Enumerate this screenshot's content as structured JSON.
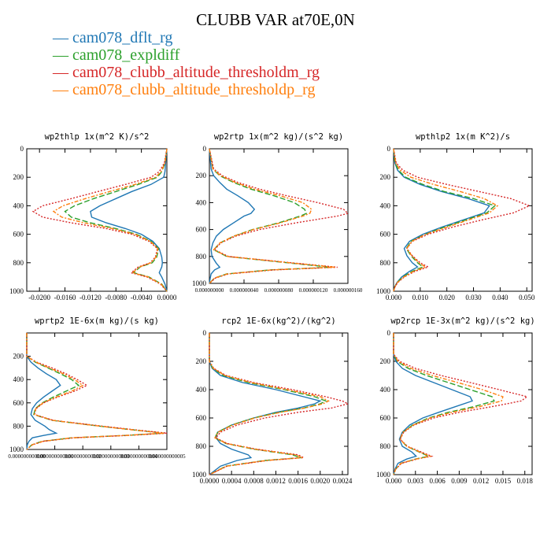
{
  "title": "CLUBB VAR at70E,0N",
  "legend": [
    {
      "name": "cam078_dflt_rg",
      "color": "#1f77b4"
    },
    {
      "name": "cam078_expldiff",
      "color": "#2ca02c"
    },
    {
      "name": "cam078_clubb_altitude_thresholdm_rg",
      "color": "#d62728"
    },
    {
      "name": "cam078_clubb_altitude_thresholdp_rg",
      "color": "#ff7f0e"
    }
  ],
  "chart_data": [
    {
      "type": "line",
      "title": "wp2thlp   1x(m^2 K)/s^2",
      "xlim": [
        -0.022,
        0.0
      ],
      "ylim": [
        1000,
        0
      ],
      "xticks": [
        -0.02,
        -0.016,
        -0.012,
        -0.008,
        -0.004,
        0.0
      ],
      "xtick_labels": [
        "-0.0200",
        "-0.0160",
        "-0.0120",
        "-0.0080",
        "-0.0040",
        "0.0000"
      ],
      "yticks": [
        0,
        200,
        400,
        600,
        800,
        1000
      ],
      "ytick_labels": [
        "0",
        "200",
        "400",
        "600",
        "800",
        "1000"
      ],
      "y": [
        0,
        100,
        160,
        200,
        250,
        300,
        350,
        400,
        440,
        480,
        520,
        560,
        600,
        650,
        700,
        760,
        800,
        830,
        870,
        900,
        950,
        1000
      ],
      "series": [
        {
          "name": "cam078_dflt_rg",
          "values": [
            0,
            -0.0002,
            -0.0003,
            -0.0005,
            -0.0025,
            -0.0055,
            -0.008,
            -0.0105,
            -0.012,
            -0.0118,
            -0.0095,
            -0.0065,
            -0.004,
            -0.0022,
            -0.0012,
            -0.0008,
            -0.0007,
            -0.0008,
            -0.0012,
            -0.0008,
            -0.0003,
            0
          ]
        },
        {
          "name": "cam078_expldiff",
          "values": [
            0,
            -0.0003,
            -0.0008,
            -0.0015,
            -0.0045,
            -0.008,
            -0.0115,
            -0.0145,
            -0.016,
            -0.015,
            -0.012,
            -0.008,
            -0.0048,
            -0.0025,
            -0.0013,
            -0.0016,
            -0.0023,
            -0.0042,
            -0.0052,
            -0.0028,
            -0.0008,
            0
          ]
        },
        {
          "name": "cam078_clubb_altitude_thresholdm_rg",
          "values": [
            0,
            -0.0004,
            -0.0012,
            -0.0025,
            -0.0065,
            -0.0108,
            -0.015,
            -0.0195,
            -0.021,
            -0.0195,
            -0.015,
            -0.0095,
            -0.0055,
            -0.0028,
            -0.0015,
            -0.0018,
            -0.0026,
            -0.0045,
            -0.0056,
            -0.0031,
            -0.001,
            0
          ]
        },
        {
          "name": "cam078_clubb_altitude_thresholdp_rg",
          "values": [
            0,
            -0.0003,
            -0.0009,
            -0.0018,
            -0.005,
            -0.009,
            -0.0128,
            -0.0163,
            -0.0178,
            -0.0165,
            -0.013,
            -0.0085,
            -0.005,
            -0.0026,
            -0.0014,
            -0.0017,
            -0.0025,
            -0.0043,
            -0.0054,
            -0.0029,
            -0.0009,
            0
          ]
        }
      ]
    },
    {
      "type": "line",
      "title": "wp2rtp   1x(m^2 kg)/(s^2 kg)",
      "xlim": [
        0.0,
        1.6e-07
      ],
      "ylim": [
        1000,
        0
      ],
      "xticks": [
        0.0,
        4e-08,
        8e-08,
        1.2e-07,
        1.6e-07
      ],
      "xtick_labels": [
        "0.000000000",
        "0.000000040",
        "0.000000080",
        "0.000000120",
        "0.000000160"
      ],
      "yticks": [
        0,
        200,
        400,
        600,
        800,
        1000
      ],
      "ytick_labels": [
        "0",
        "200",
        "400",
        "600",
        "800",
        "1000"
      ],
      "y": [
        0,
        150,
        200,
        250,
        300,
        350,
        400,
        450,
        480,
        500,
        550,
        600,
        650,
        700,
        750,
        800,
        850,
        880,
        900,
        930,
        960,
        1000
      ],
      "series": [
        {
          "name": "cam078_dflt_rg",
          "values": [
            0,
            2e-09,
            5e-09,
            1.2e-08,
            2e-08,
            3.3e-08,
            4.5e-08,
            5.2e-08,
            4.8e-08,
            4e-08,
            2.8e-08,
            1.6e-08,
            8e-09,
            4e-09,
            2e-09,
            3e-09,
            8e-09,
            1.2e-08,
            6e-09,
            2e-09,
            1e-09,
            0
          ]
        },
        {
          "name": "cam078_expldiff",
          "values": [
            0,
            4e-09,
            1.2e-08,
            2.8e-08,
            4.8e-08,
            7.5e-08,
            9.8e-08,
            1.1e-07,
            1.12e-07,
            1.05e-07,
            8e-08,
            5e-08,
            2.8e-08,
            1.2e-08,
            5e-09,
            2e-08,
            9.5e-08,
            1.4e-07,
            7e-08,
            2e-08,
            6e-09,
            0
          ]
        },
        {
          "name": "cam078_clubb_altitude_thresholdm_rg",
          "values": [
            0,
            5e-09,
            1.5e-08,
            3.3e-08,
            5.8e-08,
            9e-08,
            1.25e-07,
            1.55e-07,
            1.62e-07,
            1.48e-07,
            1e-07,
            5.8e-08,
            3e-08,
            1.3e-08,
            6e-09,
            2.2e-08,
            1e-07,
            1.48e-07,
            7.5e-08,
            2.2e-08,
            7e-09,
            0
          ]
        },
        {
          "name": "cam078_clubb_altitude_thresholdp_rg",
          "values": [
            0,
            4e-09,
            1.3e-08,
            3e-08,
            5.2e-08,
            8.2e-08,
            1.08e-07,
            1.18e-07,
            1.16e-07,
            1.08e-07,
            8.2e-08,
            5.1e-08,
            2.8e-08,
            1.2e-08,
            5e-09,
            2.1e-08,
            9.8e-08,
            1.45e-07,
            7.2e-08,
            2.1e-08,
            6e-09,
            0
          ]
        }
      ]
    },
    {
      "type": "line",
      "title": "wpthlp2   1x(m K^2)/s",
      "xlim": [
        0.0,
        0.052
      ],
      "ylim": [
        1000,
        0
      ],
      "xticks": [
        0.0,
        0.01,
        0.02,
        0.03,
        0.04,
        0.05
      ],
      "xtick_labels": [
        "0.000",
        "0.010",
        "0.020",
        "0.030",
        "0.040",
        "0.050"
      ],
      "yticks": [
        0,
        200,
        400,
        600,
        800,
        1000
      ],
      "ytick_labels": [
        "0",
        "200",
        "400",
        "600",
        "800",
        "1000"
      ],
      "y": [
        0,
        100,
        150,
        200,
        250,
        300,
        350,
        400,
        450,
        500,
        550,
        600,
        650,
        700,
        750,
        800,
        830,
        860,
        900,
        940,
        970,
        1000
      ],
      "series": [
        {
          "name": "cam078_dflt_rg",
          "values": [
            0,
            0.0005,
            0.0015,
            0.004,
            0.01,
            0.018,
            0.028,
            0.036,
            0.034,
            0.026,
            0.018,
            0.011,
            0.006,
            0.004,
            0.005,
            0.007,
            0.009,
            0.006,
            0.003,
            0.0012,
            0.0004,
            0
          ]
        },
        {
          "name": "cam078_expldiff",
          "values": [
            0,
            0.0006,
            0.0018,
            0.0045,
            0.011,
            0.019,
            0.03,
            0.038,
            0.035,
            0.027,
            0.019,
            0.012,
            0.0065,
            0.0048,
            0.0065,
            0.009,
            0.011,
            0.007,
            0.0035,
            0.0013,
            0.0004,
            0
          ]
        },
        {
          "name": "cam078_clubb_altitude_thresholdm_rg",
          "values": [
            0,
            0.001,
            0.0035,
            0.009,
            0.02,
            0.032,
            0.044,
            0.051,
            0.045,
            0.033,
            0.022,
            0.013,
            0.007,
            0.005,
            0.007,
            0.01,
            0.013,
            0.008,
            0.004,
            0.0015,
            0.0005,
            0
          ]
        },
        {
          "name": "cam078_clubb_altitude_thresholdp_rg",
          "values": [
            0,
            0.0008,
            0.0025,
            0.0065,
            0.015,
            0.025,
            0.034,
            0.039,
            0.036,
            0.028,
            0.02,
            0.012,
            0.0068,
            0.005,
            0.0068,
            0.0095,
            0.012,
            0.0075,
            0.0038,
            0.0014,
            0.0005,
            0
          ]
        }
      ]
    },
    {
      "type": "line",
      "title": "wprtp2   1E-6x(m kg)/(s kg)",
      "xlim": [
        0.0,
        5e-12
      ],
      "ylim": [
        1000,
        0
      ],
      "xticks": [
        0.0,
        1e-12,
        2e-12,
        3e-12,
        4e-12,
        5e-12
      ],
      "xtick_labels": [
        "0.000000000000",
        "0.000000000001",
        "0.000000000002",
        "0.000000000003",
        "0.000000000004",
        "0.000000000005"
      ],
      "yticks": [
        200,
        400,
        600,
        800,
        1000
      ],
      "ytick_labels": [
        "200",
        "400",
        "600",
        "800",
        "1000"
      ],
      "y": [
        0,
        200,
        250,
        300,
        350,
        400,
        450,
        500,
        550,
        600,
        650,
        700,
        750,
        800,
        830,
        860,
        880,
        900,
        930,
        960,
        1000
      ],
      "series": [
        {
          "name": "cam078_dflt_rg",
          "values": [
            0,
            0,
            1.5e-13,
            4e-13,
            7e-13,
            1.05e-12,
            1.2e-12,
            9e-13,
            6e-13,
            3.5e-13,
            2e-13,
            1.5e-13,
            3e-13,
            6.5e-13,
            8e-13,
            1.05e-12,
            6e-13,
            2e-13,
            8e-14,
            2e-14,
            0
          ]
        },
        {
          "name": "cam078_expldiff",
          "values": [
            0,
            0,
            3e-13,
            7.5e-13,
            1.2e-12,
            1.6e-12,
            1.85e-12,
            1.4e-12,
            9.5e-13,
            5.5e-13,
            3e-13,
            2.5e-13,
            9e-13,
            2.6e-12,
            3.7e-12,
            4.9e-12,
            3.5e-12,
            1.6e-12,
            5.5e-13,
            1.8e-13,
            0
          ]
        },
        {
          "name": "cam078_clubb_altitude_thresholdm_rg",
          "values": [
            0,
            0,
            3.5e-13,
            9e-13,
            1.4e-12,
            1.8e-12,
            2.15e-12,
            1.7e-12,
            1.1e-12,
            6e-13,
            3.3e-13,
            2.8e-13,
            9.5e-13,
            2.7e-12,
            3.8e-12,
            5e-12,
            3.6e-12,
            1.7e-12,
            6e-13,
            2e-13,
            0
          ]
        },
        {
          "name": "cam078_clubb_altitude_thresholdp_rg",
          "values": [
            0,
            0,
            3.2e-13,
            8e-13,
            1.3e-12,
            1.7e-12,
            2e-12,
            1.6e-12,
            1.05e-12,
            5.8e-13,
            3.2e-13,
            2.7e-13,
            9.2e-13,
            2.6e-12,
            3.7e-12,
            4.9e-12,
            3.5e-12,
            1.6e-12,
            5.8e-13,
            1.9e-13,
            0
          ]
        }
      ]
    },
    {
      "type": "line",
      "title": "rcp2   1E-6x(kg^2)/(kg^2)",
      "xlim": [
        0.0,
        0.0025
      ],
      "ylim": [
        1000,
        0
      ],
      "xticks": [
        0.0,
        0.0004,
        0.0008,
        0.0012,
        0.0016,
        0.002,
        0.0024
      ],
      "xtick_labels": [
        "0.0000",
        "0.0004",
        "0.0008",
        "0.0012",
        "0.0016",
        "0.0020",
        "0.0024"
      ],
      "yticks": [
        0,
        200,
        400,
        600,
        800,
        1000
      ],
      "ytick_labels": [
        "0",
        "200",
        "400",
        "600",
        "800",
        "1000"
      ],
      "y": [
        0,
        200,
        250,
        300,
        350,
        400,
        450,
        480,
        500,
        530,
        560,
        600,
        650,
        700,
        740,
        780,
        820,
        860,
        880,
        900,
        940,
        1000
      ],
      "series": [
        {
          "name": "cam078_dflt_rg",
          "values": [
            0,
            0,
            5e-05,
            0.0002,
            0.0006,
            0.0012,
            0.0017,
            0.002,
            0.0019,
            0.0016,
            0.0012,
            0.0008,
            0.0004,
            0.00015,
            0.00012,
            0.0002,
            0.0004,
            0.0007,
            0.00075,
            0.0005,
            0.0002,
            0
          ]
        },
        {
          "name": "cam078_expldiff",
          "values": [
            0,
            0,
            6e-05,
            0.00025,
            0.0007,
            0.00135,
            0.0019,
            0.0021,
            0.002,
            0.0017,
            0.00125,
            0.0008,
            0.0004,
            0.00015,
            0.0001,
            0.0003,
            0.0008,
            0.0015,
            0.00165,
            0.001,
            0.0003,
            0
          ]
        },
        {
          "name": "cam078_clubb_altitude_thresholdm_rg",
          "values": [
            0,
            0,
            8e-05,
            0.0003,
            0.0008,
            0.0015,
            0.0021,
            0.0024,
            0.0025,
            0.0022,
            0.0016,
            0.001,
            0.0005,
            0.0002,
            0.00012,
            0.00032,
            0.00085,
            0.0016,
            0.0017,
            0.00105,
            0.00032,
            0
          ]
        },
        {
          "name": "cam078_clubb_altitude_thresholdp_rg",
          "values": [
            0,
            0,
            7e-05,
            0.00028,
            0.00075,
            0.0014,
            0.002,
            0.00215,
            0.00205,
            0.00172,
            0.00128,
            0.00082,
            0.00042,
            0.00016,
            0.0001,
            0.00031,
            0.00082,
            0.00155,
            0.00168,
            0.00102,
            0.00031,
            0
          ]
        }
      ]
    },
    {
      "type": "line",
      "title": "wp2rcp   1E-3x(m^2 kg)/(s^2 kg)",
      "xlim": [
        0.0,
        0.019
      ],
      "ylim": [
        1000,
        0
      ],
      "xticks": [
        0.0,
        0.003,
        0.006,
        0.009,
        0.012,
        0.015,
        0.018
      ],
      "xtick_labels": [
        "0.000",
        "0.003",
        "0.006",
        "0.009",
        "0.012",
        "0.015",
        "0.018"
      ],
      "yticks": [
        0,
        200,
        400,
        600,
        800,
        1000
      ],
      "ytick_labels": [
        "0",
        "200",
        "400",
        "600",
        "800",
        "1000"
      ],
      "y": [
        0,
        150,
        200,
        250,
        300,
        350,
        400,
        450,
        480,
        520,
        560,
        600,
        650,
        700,
        750,
        800,
        840,
        870,
        890,
        920,
        960,
        1000
      ],
      "series": [
        {
          "name": "cam078_dflt_rg",
          "values": [
            0,
            0,
            0.0003,
            0.0012,
            0.003,
            0.0055,
            0.008,
            0.0105,
            0.0108,
            0.0085,
            0.0062,
            0.004,
            0.0022,
            0.0012,
            0.0008,
            0.0012,
            0.0025,
            0.0031,
            0.0018,
            0.0006,
            0.0002,
            0
          ]
        },
        {
          "name": "cam078_expldiff",
          "values": [
            0,
            0,
            0.0005,
            0.002,
            0.0045,
            0.0075,
            0.0105,
            0.0135,
            0.0138,
            0.011,
            0.0075,
            0.0048,
            0.0026,
            0.0013,
            0.0009,
            0.0018,
            0.0035,
            0.0048,
            0.003,
            0.001,
            0.0003,
            0
          ]
        },
        {
          "name": "cam078_clubb_altitude_thresholdm_rg",
          "values": [
            0,
            0,
            0.0008,
            0.003,
            0.0065,
            0.0105,
            0.0145,
            0.0183,
            0.0175,
            0.0135,
            0.009,
            0.0055,
            0.0028,
            0.0014,
            0.0009,
            0.0019,
            0.0038,
            0.0052,
            0.0032,
            0.0011,
            0.0003,
            0
          ]
        },
        {
          "name": "cam078_clubb_altitude_thresholdp_rg",
          "values": [
            0,
            0,
            0.0006,
            0.0024,
            0.0053,
            0.0088,
            0.0122,
            0.015,
            0.0148,
            0.0118,
            0.008,
            0.005,
            0.0027,
            0.0013,
            0.0009,
            0.0018,
            0.0036,
            0.005,
            0.0031,
            0.001,
            0.0003,
            0
          ]
        }
      ]
    }
  ]
}
